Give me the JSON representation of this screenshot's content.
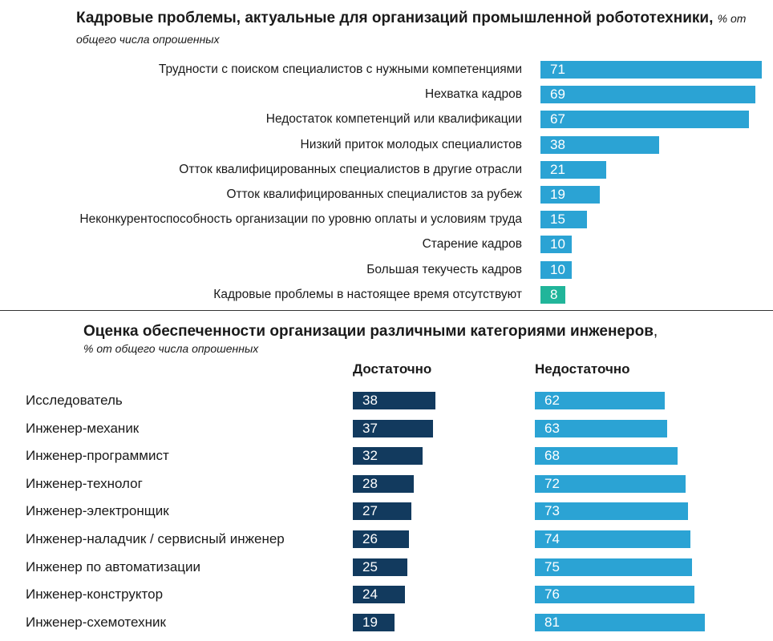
{
  "colors": {
    "blue": "#2ba3d4",
    "green": "#21b59a",
    "navy": "#123a5e"
  },
  "chart_data": [
    {
      "type": "bar",
      "orientation": "horizontal",
      "title": "Кадровые проблемы, актуальные для организаций промышленной робототехники",
      "title_suffix": ",",
      "subtitle": "% от общего числа опрошенных",
      "categories": [
        "Трудности с поиском специалистов с нужными компетенциями",
        "Нехватка кадров",
        "Недостаток компетенций или квалификации",
        "Низкий приток молодых специалистов",
        "Отток квалифицированных специалистов в другие отрасли",
        "Отток квалифицированных специалистов за рубеж",
        "Неконкурентоспособность организации по уровню оплаты и условиям труда",
        "Старение кадров",
        "Большая текучесть кадров",
        "Кадровые проблемы в настоящее время отсутствуют"
      ],
      "values": [
        71,
        69,
        67,
        38,
        21,
        19,
        15,
        10,
        10,
        8
      ],
      "bar_colors": [
        "#2ba3d4",
        "#2ba3d4",
        "#2ba3d4",
        "#2ba3d4",
        "#2ba3d4",
        "#2ba3d4",
        "#2ba3d4",
        "#2ba3d4",
        "#2ba3d4",
        "#21b59a"
      ],
      "xlim": [
        0,
        71
      ]
    },
    {
      "type": "bar",
      "orientation": "horizontal",
      "title": "Оценка обеспеченности организации различными категориями инженеров",
      "title_suffix": ",",
      "subtitle": "% от общего числа опрошенных",
      "categories": [
        "Исследователь",
        "Инженер-механик",
        "Инженер-программист",
        "Инженер-технолог",
        "Инженер-электронщик",
        "Инженер-наладчик / сервисный инженер",
        "Инженер по автоматизации",
        "Инженер-конструктор",
        "Инженер-схемотехник"
      ],
      "series": [
        {
          "name": "Достаточно",
          "color": "#123a5e",
          "values": [
            38,
            37,
            32,
            28,
            27,
            26,
            25,
            24,
            19
          ]
        },
        {
          "name": "Недостаточно",
          "color": "#2ba3d4",
          "values": [
            62,
            63,
            68,
            72,
            73,
            74,
            75,
            76,
            81
          ]
        }
      ],
      "xlim": [
        0,
        81
      ]
    }
  ]
}
